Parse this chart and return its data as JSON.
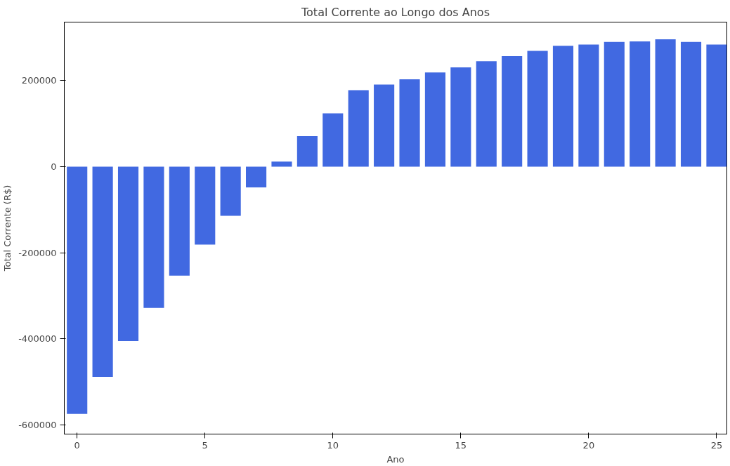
{
  "chart_data": {
    "type": "bar",
    "title": "Total Corrente ao Longo dos Anos",
    "xlabel": "Ano",
    "ylabel": "Total Corrente (R$)",
    "x": [
      0,
      1,
      2,
      3,
      4,
      5,
      6,
      7,
      8,
      9,
      10,
      11,
      12,
      13,
      14,
      15,
      16,
      17,
      18,
      19,
      20,
      21,
      22,
      23,
      24,
      25
    ],
    "values": [
      -574000,
      -488000,
      -405000,
      -328000,
      -253000,
      -181000,
      -114000,
      -48000,
      12000,
      71000,
      124000,
      178000,
      191000,
      203000,
      219000,
      231000,
      245000,
      257000,
      269000,
      281000,
      284000,
      290000,
      291000,
      296000,
      290000,
      284000
    ],
    "color": "#4169e1",
    "xlim": [
      -0.5,
      25.4
    ],
    "xticks": [
      0,
      5,
      10,
      15,
      20,
      25
    ],
    "ylim": [
      -621000,
      336000
    ],
    "yticks": [
      -600000,
      -400000,
      -200000,
      0,
      200000
    ],
    "grid": false
  }
}
